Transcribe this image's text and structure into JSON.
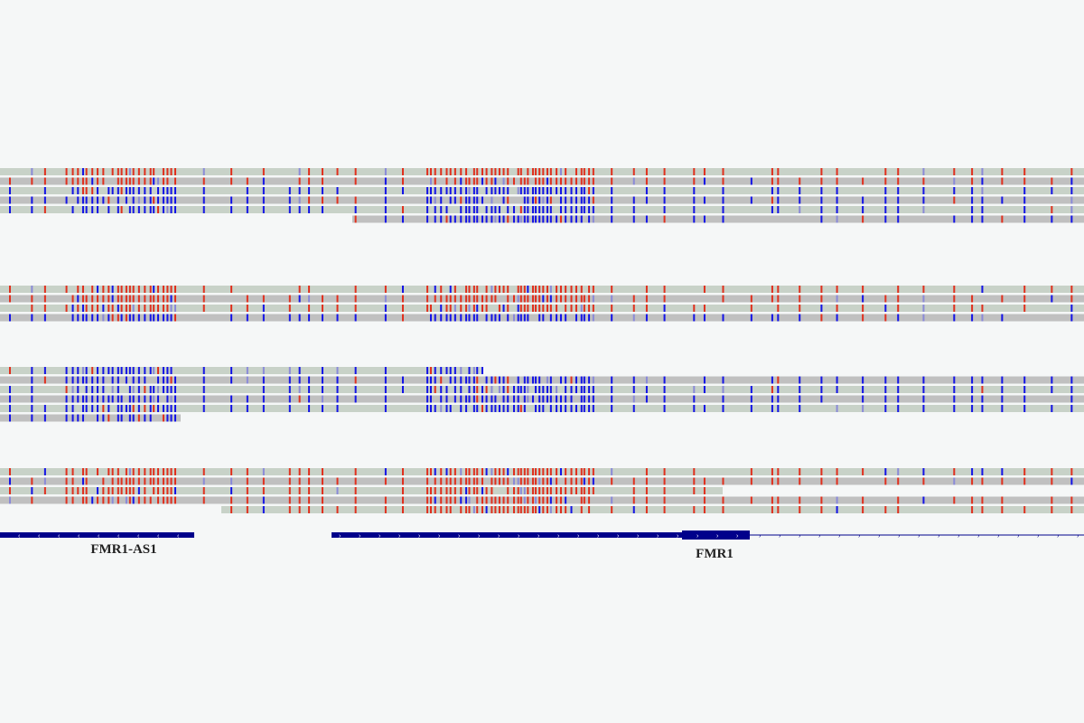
{
  "genes": [
    {
      "label": "FMR1-AS1"
    },
    {
      "label": "FMR1"
    }
  ]
}
